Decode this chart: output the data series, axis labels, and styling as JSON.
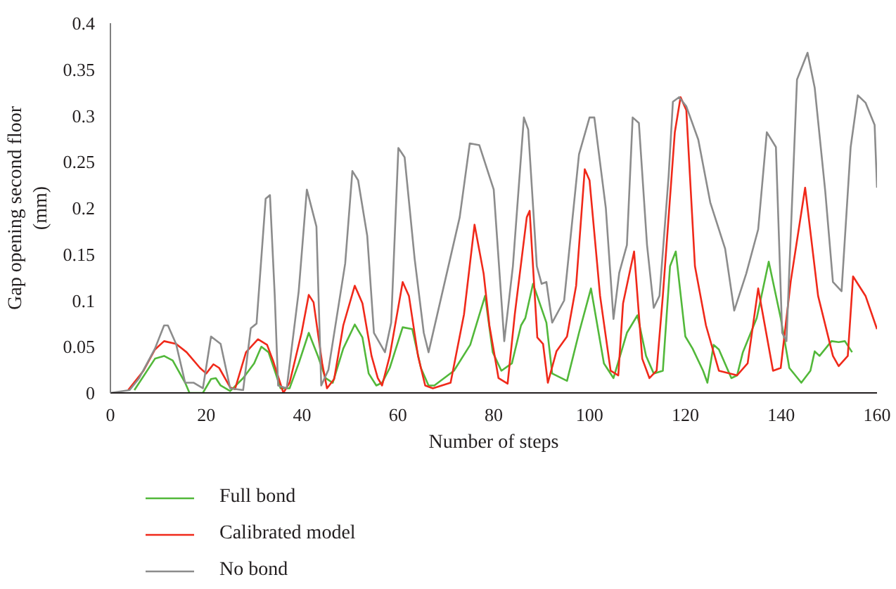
{
  "chart_data": {
    "type": "line",
    "xlabel": "Number of steps",
    "ylabel": "Gap opening second floor (mm)",
    "xlim": [
      0,
      160
    ],
    "xticks": [
      0,
      20,
      40,
      60,
      80,
      100,
      120,
      140,
      160
    ],
    "ylim": [
      0,
      0.4
    ],
    "yticks": [
      0,
      0.05,
      0.1,
      0.15,
      0.2,
      0.25,
      0.3,
      0.35,
      0.4
    ],
    "grid": false,
    "legend": "bottom",
    "marker": "none",
    "line_style": "solid",
    "series": [
      {
        "name": "Full bond",
        "color": "#52b83a",
        "x": [
          5,
          9.3,
          11.2,
          13,
          15.6,
          16.5,
          19.3,
          21,
          22,
          23,
          25,
          27.7,
          30,
          31.5,
          33,
          34.3,
          35.5,
          37.4,
          39.3,
          41.4,
          43.3,
          44.9,
          46.4,
          48.6,
          51,
          52.6,
          53.9,
          55.5,
          56.7,
          58.3,
          61,
          63,
          64.8,
          66.4,
          67.6,
          71.7,
          75.1,
          78.2,
          79.8,
          81.6,
          83.8,
          85.7,
          86.6,
          88.2,
          91,
          92.2,
          95.3,
          97.8,
          100.3,
          103,
          105,
          107.8,
          110,
          111.8,
          113.4,
          115.3,
          116.8,
          118,
          120,
          121.5,
          123.7,
          124.6,
          125.9,
          127,
          129.6,
          130.8,
          132,
          134.9,
          137.4,
          139.9,
          141.7,
          144.2,
          146.1,
          147,
          148,
          150.5,
          152,
          153.3,
          154.8
        ],
        "values": [
          0.003,
          0.037,
          0.04,
          0.035,
          0.011,
          0,
          0,
          0.015,
          0.016,
          0.008,
          0.002,
          0.016,
          0.032,
          0.05,
          0.044,
          0.024,
          0.005,
          0.005,
          0.032,
          0.065,
          0.04,
          0.016,
          0.011,
          0.048,
          0.074,
          0.06,
          0.021,
          0.008,
          0.011,
          0.027,
          0.071,
          0.069,
          0.027,
          0.008,
          0.008,
          0.024,
          0.052,
          0.105,
          0.044,
          0.024,
          0.032,
          0.073,
          0.081,
          0.118,
          0.076,
          0.021,
          0.013,
          0.065,
          0.113,
          0.032,
          0.016,
          0.065,
          0.084,
          0.04,
          0.021,
          0.024,
          0.137,
          0.153,
          0.061,
          0.048,
          0.024,
          0.011,
          0.052,
          0.047,
          0.016,
          0.019,
          0.044,
          0.081,
          0.142,
          0.081,
          0.027,
          0.011,
          0.024,
          0.045,
          0.04,
          0.056,
          0.055,
          0.056,
          0.044
        ]
      },
      {
        "name": "Calibrated model",
        "color": "#f0291a",
        "x": [
          3.7,
          6.9,
          9.3,
          11.2,
          13.7,
          15.9,
          18.7,
          20,
          21.5,
          22.7,
          25,
          26,
          28.3,
          30.8,
          32.7,
          34,
          36.1,
          37.4,
          39.9,
          41.4,
          42.4,
          44.2,
          45.2,
          46.7,
          48.6,
          51,
          52.6,
          54.5,
          55.8,
          56.7,
          58.3,
          61,
          62.3,
          64.2,
          65.7,
          67.3,
          71,
          73.8,
          76,
          77.9,
          79.1,
          81,
          82.9,
          84.4,
          86.9,
          87.5,
          89.1,
          90.3,
          91.3,
          93.1,
          95.3,
          97.2,
          99,
          100,
          102.2,
          104.4,
          106,
          107,
          109.3,
          111,
          112.5,
          114,
          115.3,
          117.8,
          119,
          120.2,
          122,
          124.3,
          127,
          130.8,
          133,
          135.2,
          138.3,
          139.9,
          142,
          145,
          147.7,
          150.8,
          152,
          153.9,
          155,
          157.6,
          160
        ],
        "values": [
          0.003,
          0.024,
          0.047,
          0.056,
          0.053,
          0.044,
          0.027,
          0.021,
          0.031,
          0.027,
          0.006,
          0.004,
          0.044,
          0.058,
          0.052,
          0.034,
          0,
          0.011,
          0.065,
          0.106,
          0.098,
          0.032,
          0.005,
          0.015,
          0.073,
          0.116,
          0.097,
          0.04,
          0.016,
          0.008,
          0.04,
          0.12,
          0.105,
          0.04,
          0.008,
          0.005,
          0.011,
          0.085,
          0.182,
          0.129,
          0.073,
          0.016,
          0.01,
          0.085,
          0.19,
          0.197,
          0.06,
          0.053,
          0.011,
          0.045,
          0.061,
          0.116,
          0.242,
          0.23,
          0.105,
          0.024,
          0.019,
          0.097,
          0.153,
          0.037,
          0.016,
          0.024,
          0.105,
          0.282,
          0.32,
          0.306,
          0.137,
          0.073,
          0.024,
          0.019,
          0.032,
          0.113,
          0.024,
          0.027,
          0.121,
          0.222,
          0.105,
          0.04,
          0.029,
          0.04,
          0.126,
          0.105,
          0.069
        ]
      },
      {
        "name": "No bond",
        "color": "#8c8c8c",
        "x": [
          0,
          4,
          6,
          9.3,
          11.2,
          12,
          13.7,
          15.6,
          17.4,
          19.3,
          21,
          23,
          25,
          27.7,
          29.3,
          30.5,
          32.4,
          33.3,
          34.3,
          35,
          36.8,
          39.3,
          41,
          43,
          44,
          45.5,
          49,
          50.5,
          51.7,
          53.6,
          55,
          57.3,
          58.6,
          60.1,
          61.4,
          63.5,
          65.4,
          66.4,
          72.9,
          75,
          77,
          80,
          82.2,
          84,
          86.3,
          87.2,
          89,
          90,
          91,
          92.2,
          94.7,
          97.8,
          100,
          101,
          103.4,
          105,
          106.2,
          107.8,
          109,
          110.3,
          112,
          113.4,
          114.6,
          116.5,
          117.4,
          118.7,
          120.2,
          122.7,
          125.2,
          128.3,
          130.2,
          132.7,
          135.2,
          137,
          138.9,
          140.2,
          141.1,
          143.3,
          145.5,
          147,
          149.2,
          150.8,
          152.6,
          154.5,
          156,
          157.6,
          159.5,
          160
        ],
        "values": [
          0,
          0.003,
          0.016,
          0.048,
          0.073,
          0.073,
          0.053,
          0.011,
          0.011,
          0.005,
          0.061,
          0.053,
          0.005,
          0.003,
          0.07,
          0.075,
          0.21,
          0.214,
          0.105,
          0.008,
          0.005,
          0.11,
          0.22,
          0.18,
          0.008,
          0.025,
          0.14,
          0.24,
          0.23,
          0.17,
          0.065,
          0.044,
          0.076,
          0.265,
          0.255,
          0.145,
          0.065,
          0.044,
          0.19,
          0.27,
          0.268,
          0.22,
          0.056,
          0.137,
          0.298,
          0.285,
          0.137,
          0.118,
          0.12,
          0.076,
          0.1,
          0.258,
          0.298,
          0.298,
          0.2,
          0.08,
          0.13,
          0.16,
          0.298,
          0.292,
          0.16,
          0.092,
          0.105,
          0.234,
          0.315,
          0.32,
          0.31,
          0.274,
          0.206,
          0.156,
          0.089,
          0.129,
          0.177,
          0.282,
          0.266,
          0.065,
          0.056,
          0.339,
          0.368,
          0.33,
          0.218,
          0.12,
          0.11,
          0.266,
          0.322,
          0.314,
          0.29,
          0.222
        ]
      }
    ]
  }
}
